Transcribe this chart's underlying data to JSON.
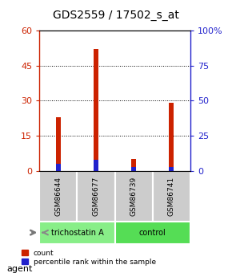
{
  "title": "GDS2559 / 17502_s_at",
  "samples": [
    "GSM86644",
    "GSM86677",
    "GSM86739",
    "GSM86741"
  ],
  "count_values": [
    23,
    52,
    5,
    29
  ],
  "percentile_values": [
    5,
    8,
    3,
    3
  ],
  "left_ylim": [
    0,
    60
  ],
  "right_ylim": [
    0,
    100
  ],
  "left_yticks": [
    0,
    15,
    30,
    45,
    60
  ],
  "right_yticks": [
    0,
    25,
    50,
    75,
    100
  ],
  "right_yticklabels": [
    "0",
    "25",
    "50",
    "75",
    "100%"
  ],
  "bar_color_count": "#cc2200",
  "bar_color_pct": "#2222cc",
  "groups": [
    {
      "label": "trichostatin A",
      "samples": [
        0,
        1
      ],
      "color": "#88ee88"
    },
    {
      "label": "control",
      "samples": [
        2,
        3
      ],
      "color": "#55dd55"
    }
  ],
  "agent_label": "agent",
  "legend_count_label": "count",
  "legend_pct_label": "percentile rank within the sample",
  "bar_width": 0.12,
  "background_sample_box": "#cccccc",
  "title_fontsize": 10,
  "tick_fontsize": 8
}
